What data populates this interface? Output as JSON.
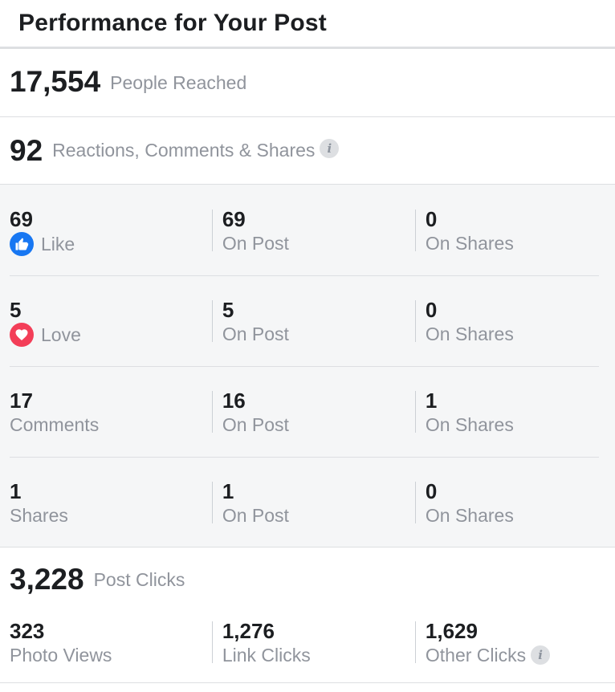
{
  "header": {
    "title": "Performance for Your Post"
  },
  "reach": {
    "value": "17,554",
    "label": "People Reached"
  },
  "engagement": {
    "value": "92",
    "label": "Reactions, Comments & Shares"
  },
  "breakdown": [
    {
      "value": "69",
      "label": "Like",
      "icon": "like-icon",
      "on_post": "69",
      "on_post_label": "On Post",
      "on_shares": "0",
      "on_shares_label": "On Shares"
    },
    {
      "value": "5",
      "label": "Love",
      "icon": "love-icon",
      "on_post": "5",
      "on_post_label": "On Post",
      "on_shares": "0",
      "on_shares_label": "On Shares"
    },
    {
      "value": "17",
      "label": "Comments",
      "on_post": "16",
      "on_post_label": "On Post",
      "on_shares": "1",
      "on_shares_label": "On Shares"
    },
    {
      "value": "1",
      "label": "Shares",
      "on_post": "1",
      "on_post_label": "On Post",
      "on_shares": "0",
      "on_shares_label": "On Shares"
    }
  ],
  "clicks": {
    "value": "3,228",
    "label": "Post Clicks",
    "photo_views": "323",
    "photo_views_label": "Photo Views",
    "link_clicks": "1,276",
    "link_clicks_label": "Link Clicks",
    "other_clicks": "1,629",
    "other_clicks_label": "Other Clicks"
  },
  "colors": {
    "like": "#1877f2",
    "love": "#f33e58",
    "muted_text": "#90949c",
    "panel_bg": "#f5f6f7"
  }
}
